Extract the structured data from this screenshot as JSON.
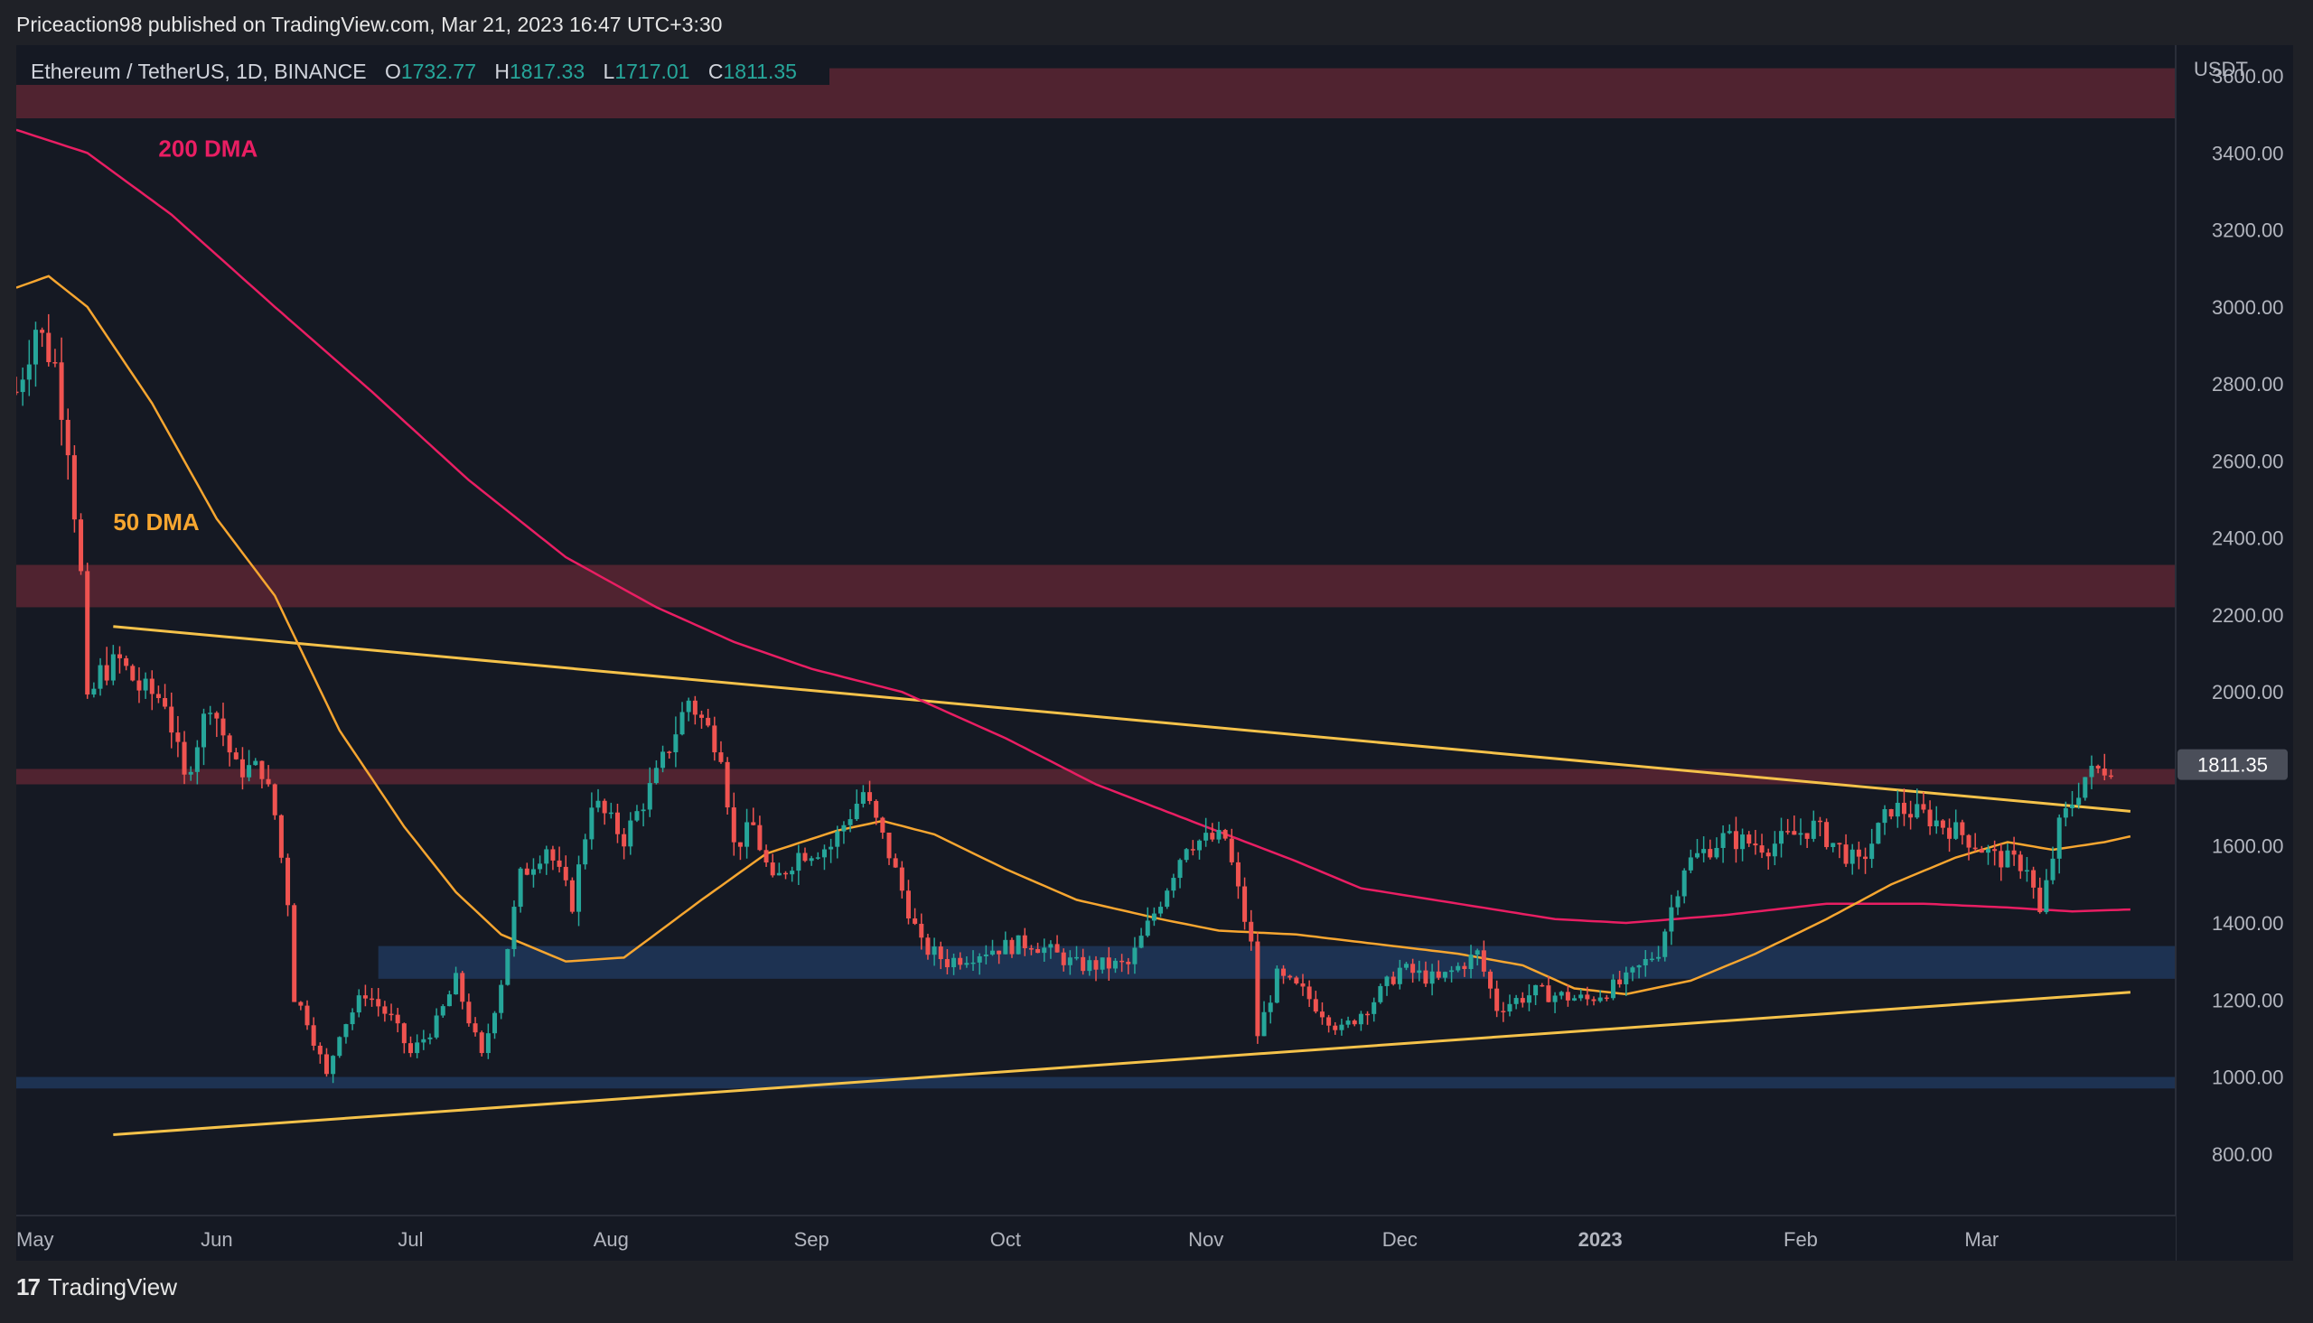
{
  "publisher": "Priceaction98 published on TradingView.com, Mar 21, 2023 16:47 UTC+3:30",
  "footer": {
    "brand": "TradingView",
    "logo_text": "17"
  },
  "symbol": {
    "name": "Ethereum / TetherUS, 1D, BINANCE",
    "open_label": "O",
    "open": "1732.77",
    "high_label": "H",
    "high": "1817.33",
    "low_label": "L",
    "low": "1717.01",
    "close_label": "C",
    "close": "1811.35"
  },
  "colors": {
    "up": "#26a69a",
    "down": "#ef5350",
    "dma50": "#f7a630",
    "dma200": "#e91e63",
    "trend": "#f5c24a",
    "resistance_zone": "#5a2633",
    "support_zone": "#1e3558"
  },
  "chart_data": {
    "type": "candlestick",
    "y_axis_label": "USDT",
    "y_ticks": [
      "3600.00",
      "3400.00",
      "3200.00",
      "3000.00",
      "2800.00",
      "2600.00",
      "2400.00",
      "2200.00",
      "2000.00",
      "1800.00",
      "1600.00",
      "1400.00",
      "1200.00",
      "1000.00",
      "800.00"
    ],
    "ylim": [
      640,
      3680
    ],
    "x_range": [
      "2022-05-01",
      "2023-03-31"
    ],
    "x_ticks": [
      {
        "label": "May",
        "date": "2022-05-01"
      },
      {
        "label": "Jun",
        "date": "2022-06-01"
      },
      {
        "label": "Jul",
        "date": "2022-07-01"
      },
      {
        "label": "Aug",
        "date": "2022-08-01"
      },
      {
        "label": "Sep",
        "date": "2022-09-01"
      },
      {
        "label": "Oct",
        "date": "2022-10-01"
      },
      {
        "label": "Nov",
        "date": "2022-11-01"
      },
      {
        "label": "Dec",
        "date": "2022-12-01"
      },
      {
        "label": "2023",
        "date": "2023-01-01",
        "bold": true
      },
      {
        "label": "Feb",
        "date": "2023-02-01"
      },
      {
        "label": "Mar",
        "date": "2023-03-01"
      }
    ],
    "last_price": "1811.35",
    "last_price_value": 1811.35,
    "labels": [
      {
        "text": "200 DMA",
        "date": "2022-05-23",
        "price": 3390,
        "color": "#e91e63"
      },
      {
        "text": "50 DMA",
        "date": "2022-05-16",
        "price": 2420,
        "color": "#f7a630"
      }
    ],
    "zones": [
      {
        "type": "resistance",
        "from": 3490,
        "to": 3620,
        "start": "2022-05-01"
      },
      {
        "type": "resistance",
        "from": 2220,
        "to": 2330,
        "start": "2022-05-01"
      },
      {
        "type": "resistance",
        "from": 1760,
        "to": 1800,
        "start": "2022-05-01"
      },
      {
        "type": "support",
        "from": 1255,
        "to": 1340,
        "start": "2022-06-26"
      },
      {
        "type": "support",
        "from": 970,
        "to": 1000,
        "start": "2022-05-01"
      }
    ],
    "trendlines": [
      {
        "name": "descending",
        "start": [
          "2022-05-16",
          2170
        ],
        "end": [
          "2023-03-24",
          1690
        ]
      },
      {
        "name": "ascending",
        "start": [
          "2022-05-16",
          850
        ],
        "end": [
          "2023-03-24",
          1220
        ]
      }
    ],
    "dma50": [
      [
        "2022-05-01",
        3050
      ],
      [
        "2022-05-06",
        3080
      ],
      [
        "2022-05-12",
        3000
      ],
      [
        "2022-05-22",
        2750
      ],
      [
        "2022-06-01",
        2450
      ],
      [
        "2022-06-10",
        2250
      ],
      [
        "2022-06-20",
        1900
      ],
      [
        "2022-06-30",
        1650
      ],
      [
        "2022-07-08",
        1480
      ],
      [
        "2022-07-15",
        1370
      ],
      [
        "2022-07-25",
        1300
      ],
      [
        "2022-08-03",
        1310
      ],
      [
        "2022-08-15",
        1460
      ],
      [
        "2022-08-25",
        1580
      ],
      [
        "2022-09-05",
        1640
      ],
      [
        "2022-09-12",
        1665
      ],
      [
        "2022-09-20",
        1630
      ],
      [
        "2022-10-01",
        1540
      ],
      [
        "2022-10-12",
        1460
      ],
      [
        "2022-10-25",
        1410
      ],
      [
        "2022-11-03",
        1380
      ],
      [
        "2022-11-15",
        1370
      ],
      [
        "2022-11-30",
        1340
      ],
      [
        "2022-12-10",
        1320
      ],
      [
        "2022-12-20",
        1290
      ],
      [
        "2022-12-28",
        1230
      ],
      [
        "2023-01-05",
        1215
      ],
      [
        "2023-01-15",
        1250
      ],
      [
        "2023-01-25",
        1320
      ],
      [
        "2023-02-05",
        1410
      ],
      [
        "2023-02-15",
        1500
      ],
      [
        "2023-02-25",
        1570
      ],
      [
        "2023-03-05",
        1610
      ],
      [
        "2023-03-12",
        1590
      ],
      [
        "2023-03-20",
        1610
      ],
      [
        "2023-03-24",
        1625
      ]
    ],
    "dma200": [
      [
        "2022-05-01",
        3460
      ],
      [
        "2022-05-12",
        3400
      ],
      [
        "2022-05-25",
        3240
      ],
      [
        "2022-06-10",
        3000
      ],
      [
        "2022-06-25",
        2780
      ],
      [
        "2022-07-10",
        2550
      ],
      [
        "2022-07-25",
        2350
      ],
      [
        "2022-08-08",
        2220
      ],
      [
        "2022-08-20",
        2130
      ],
      [
        "2022-09-01",
        2060
      ],
      [
        "2022-09-15",
        2000
      ],
      [
        "2022-10-01",
        1880
      ],
      [
        "2022-10-15",
        1760
      ],
      [
        "2022-11-01",
        1650
      ],
      [
        "2022-11-15",
        1560
      ],
      [
        "2022-11-25",
        1490
      ],
      [
        "2022-12-10",
        1450
      ],
      [
        "2022-12-25",
        1410
      ],
      [
        "2023-01-05",
        1400
      ],
      [
        "2023-01-20",
        1420
      ],
      [
        "2023-02-05",
        1450
      ],
      [
        "2023-02-20",
        1450
      ],
      [
        "2023-03-05",
        1440
      ],
      [
        "2023-03-15",
        1430
      ],
      [
        "2023-03-24",
        1435
      ]
    ],
    "price_path": [
      [
        "2022-05-01",
        2780
      ],
      [
        "2022-05-04",
        2950
      ],
      [
        "2022-05-07",
        2850
      ],
      [
        "2022-05-09",
        2650
      ],
      [
        "2022-05-11",
        2300
      ],
      [
        "2022-05-12",
        1960
      ],
      [
        "2022-05-14",
        2050
      ],
      [
        "2022-05-17",
        2080
      ],
      [
        "2022-05-20",
        2010
      ],
      [
        "2022-05-24",
        1980
      ],
      [
        "2022-05-27",
        1770
      ],
      [
        "2022-05-31",
        1980
      ],
      [
        "2022-06-04",
        1800
      ],
      [
        "2022-06-08",
        1800
      ],
      [
        "2022-06-10",
        1680
      ],
      [
        "2022-06-12",
        1460
      ],
      [
        "2022-06-13",
        1210
      ],
      [
        "2022-06-15",
        1150
      ],
      [
        "2022-06-18",
        1000
      ],
      [
        "2022-06-20",
        1120
      ],
      [
        "2022-06-24",
        1220
      ],
      [
        "2022-06-28",
        1150
      ],
      [
        "2022-07-01",
        1060
      ],
      [
        "2022-07-05",
        1140
      ],
      [
        "2022-07-08",
        1250
      ],
      [
        "2022-07-12",
        1050
      ],
      [
        "2022-07-15",
        1250
      ],
      [
        "2022-07-18",
        1520
      ],
      [
        "2022-07-22",
        1600
      ],
      [
        "2022-07-26",
        1450
      ],
      [
        "2022-07-29",
        1720
      ],
      [
        "2022-08-03",
        1620
      ],
      [
        "2022-08-08",
        1780
      ],
      [
        "2022-08-13",
        1980
      ],
      [
        "2022-08-18",
        1850
      ],
      [
        "2022-08-20",
        1600
      ],
      [
        "2022-08-23",
        1650
      ],
      [
        "2022-08-26",
        1500
      ],
      [
        "2022-08-30",
        1580
      ],
      [
        "2022-09-04",
        1600
      ],
      [
        "2022-09-09",
        1740
      ],
      [
        "2022-09-13",
        1580
      ],
      [
        "2022-09-18",
        1340
      ],
      [
        "2022-09-22",
        1300
      ],
      [
        "2022-09-28",
        1330
      ],
      [
        "2022-10-05",
        1350
      ],
      [
        "2022-10-12",
        1290
      ],
      [
        "2022-10-20",
        1290
      ],
      [
        "2022-10-25",
        1460
      ],
      [
        "2022-10-29",
        1610
      ],
      [
        "2022-11-04",
        1620
      ],
      [
        "2022-11-08",
        1340
      ],
      [
        "2022-11-09",
        1110
      ],
      [
        "2022-11-12",
        1260
      ],
      [
        "2022-11-16",
        1220
      ],
      [
        "2022-11-22",
        1120
      ],
      [
        "2022-11-27",
        1200
      ],
      [
        "2022-12-01",
        1280
      ],
      [
        "2022-12-07",
        1250
      ],
      [
        "2022-12-13",
        1320
      ],
      [
        "2022-12-16",
        1180
      ],
      [
        "2022-12-22",
        1220
      ],
      [
        "2022-12-30",
        1200
      ],
      [
        "2023-01-05",
        1250
      ],
      [
        "2023-01-10",
        1330
      ],
      [
        "2023-01-14",
        1550
      ],
      [
        "2023-01-20",
        1620
      ],
      [
        "2023-01-27",
        1600
      ],
      [
        "2023-02-03",
        1650
      ],
      [
        "2023-02-10",
        1550
      ],
      [
        "2023-02-15",
        1700
      ],
      [
        "2023-02-20",
        1680
      ],
      [
        "2023-02-26",
        1630
      ],
      [
        "2023-03-03",
        1570
      ],
      [
        "2023-03-08",
        1550
      ],
      [
        "2023-03-10",
        1420
      ],
      [
        "2023-03-13",
        1650
      ],
      [
        "2023-03-17",
        1780
      ],
      [
        "2023-03-21",
        1811
      ]
    ]
  }
}
